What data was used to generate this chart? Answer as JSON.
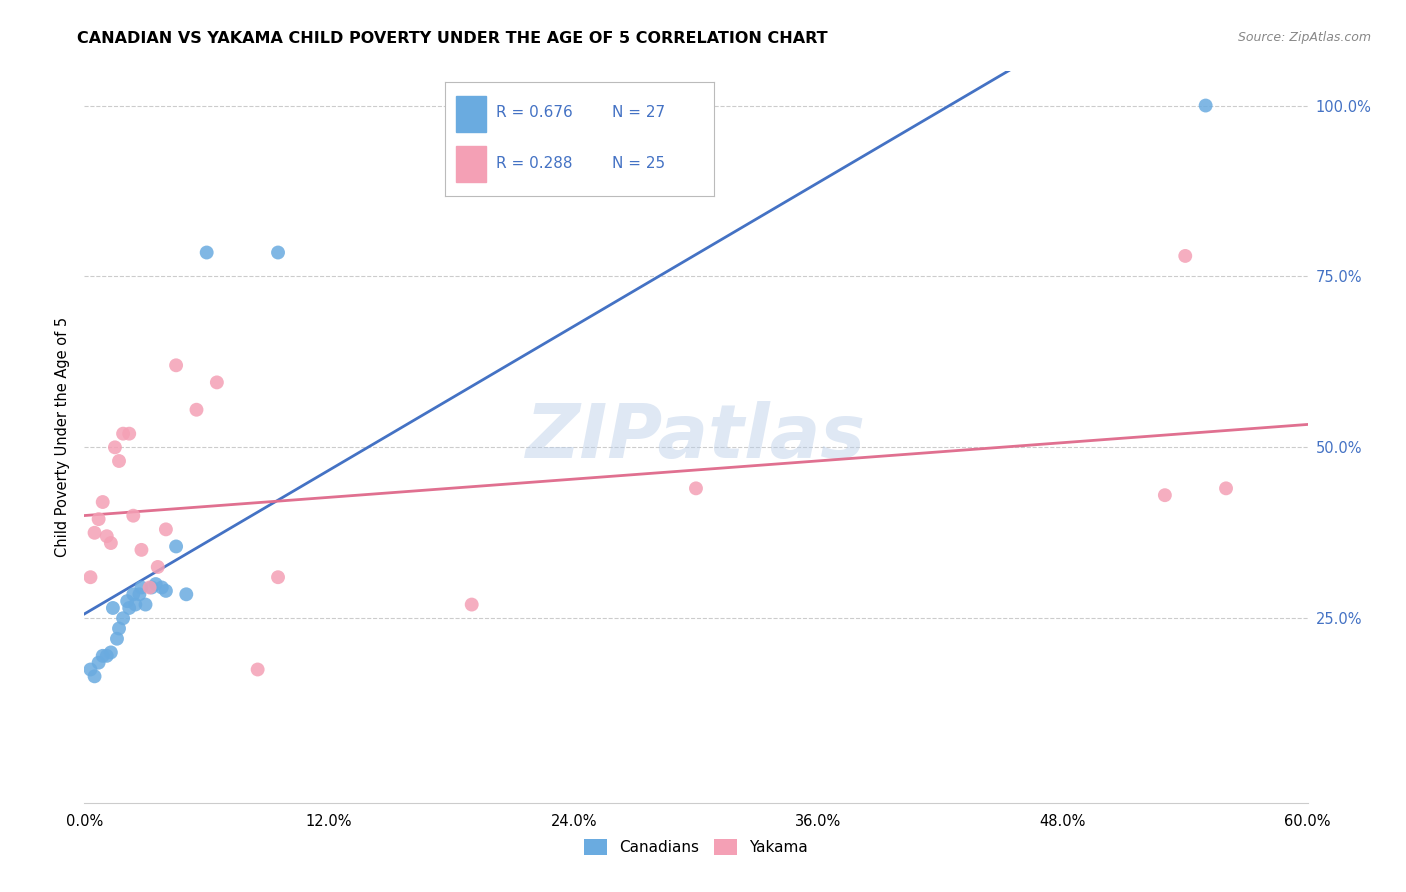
{
  "title": "CANADIAN VS YAKAMA CHILD POVERTY UNDER THE AGE OF 5 CORRELATION CHART",
  "source": "Source: ZipAtlas.com",
  "ylabel": "Child Poverty Under the Age of 5",
  "xlim": [
    0.0,
    0.6
  ],
  "ylim": [
    -0.02,
    1.05
  ],
  "xticks": [
    0.0,
    0.12,
    0.24,
    0.36,
    0.48,
    0.6
  ],
  "yticks_right": [
    0.25,
    0.5,
    0.75,
    1.0
  ],
  "canadian_color": "#6aabe0",
  "yakama_color": "#f4a0b5",
  "canadian_line_color": "#4472c4",
  "yakama_line_color": "#e07090",
  "watermark": "ZIPatlas",
  "legend_R_canadian": "R = 0.676",
  "legend_N_canadian": "N = 27",
  "legend_R_yakama": "R = 0.288",
  "legend_N_yakama": "N = 25",
  "canadians_x": [
    0.003,
    0.005,
    0.007,
    0.009,
    0.011,
    0.013,
    0.014,
    0.016,
    0.017,
    0.019,
    0.021,
    0.022,
    0.024,
    0.025,
    0.027,
    0.028,
    0.03,
    0.033,
    0.035,
    0.038,
    0.04,
    0.045,
    0.05,
    0.06,
    0.095,
    0.19,
    0.55
  ],
  "canadians_y": [
    0.175,
    0.165,
    0.185,
    0.195,
    0.195,
    0.2,
    0.265,
    0.22,
    0.235,
    0.25,
    0.275,
    0.265,
    0.285,
    0.27,
    0.285,
    0.295,
    0.27,
    0.295,
    0.3,
    0.295,
    0.29,
    0.355,
    0.285,
    0.785,
    0.785,
    1.0,
    1.0
  ],
  "yakama_x": [
    0.003,
    0.005,
    0.007,
    0.009,
    0.011,
    0.013,
    0.015,
    0.017,
    0.019,
    0.022,
    0.024,
    0.028,
    0.032,
    0.036,
    0.04,
    0.045,
    0.055,
    0.065,
    0.085,
    0.095,
    0.19,
    0.3,
    0.53,
    0.54,
    0.56
  ],
  "yakama_y": [
    0.31,
    0.375,
    0.395,
    0.42,
    0.37,
    0.36,
    0.5,
    0.48,
    0.52,
    0.52,
    0.4,
    0.35,
    0.295,
    0.325,
    0.38,
    0.62,
    0.555,
    0.595,
    0.175,
    0.31,
    0.27,
    0.44,
    0.43,
    0.78,
    0.44
  ]
}
